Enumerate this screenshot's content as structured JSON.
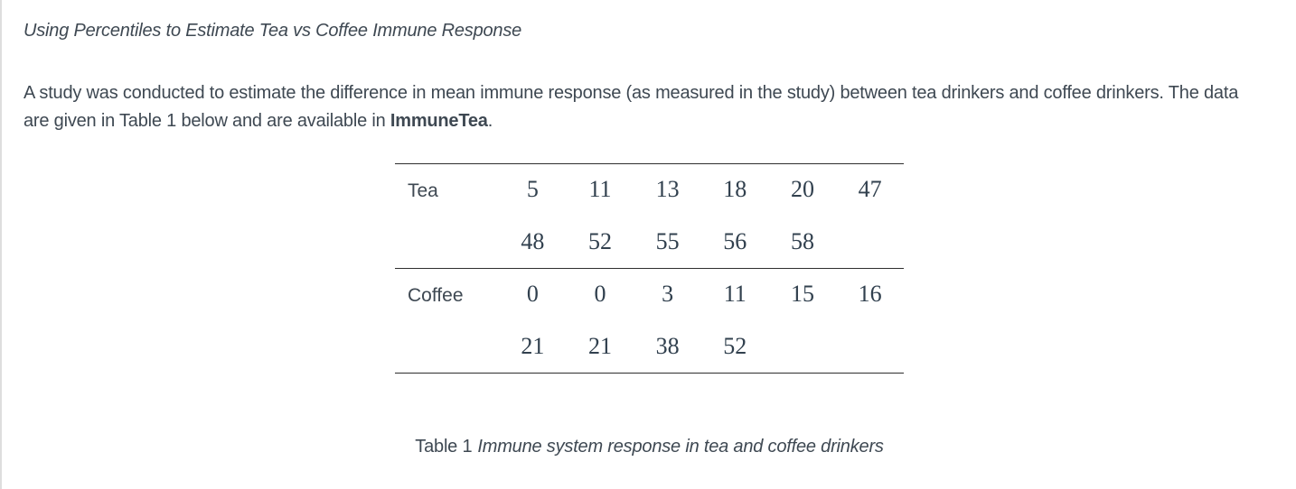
{
  "page": {
    "title": "Using Percentiles to Estimate Tea vs Coffee Immune Response",
    "paragraph": {
      "before_bold": "A study was conducted to estimate the difference in mean immune response (as measured in the study) between tea drinkers and coffee drinkers. The data are given in Table 1 below and are available in ",
      "bold": "ImmuneTea",
      "after_bold": "."
    }
  },
  "table": {
    "rows": [
      {
        "label": "Tea",
        "line1": [
          "5",
          "11",
          "13",
          "18",
          "20",
          "47"
        ],
        "line2": [
          "48",
          "52",
          "55",
          "56",
          "58"
        ]
      },
      {
        "label": "Coffee",
        "line1": [
          "0",
          "0",
          "3",
          "11",
          "15",
          "16"
        ],
        "line2": [
          "21",
          "21",
          "38",
          "52"
        ]
      }
    ],
    "caption_prefix": "Table 1",
    "caption_text": "Immune system response in tea and coffee drinkers"
  },
  "chart_data": {
    "type": "table",
    "title": "Table 1 Immune system response in tea and coffee drinkers",
    "series": [
      {
        "name": "Tea",
        "values": [
          5,
          11,
          13,
          18,
          20,
          47,
          48,
          52,
          55,
          56,
          58
        ]
      },
      {
        "name": "Coffee",
        "values": [
          0,
          0,
          3,
          11,
          15,
          16,
          21,
          21,
          38,
          52
        ]
      }
    ]
  },
  "colors": {
    "text": "#3e4852",
    "numbers": "#31404e",
    "rule": "#2e2e2e",
    "left_border": "#dedede",
    "background": "#ffffff"
  }
}
